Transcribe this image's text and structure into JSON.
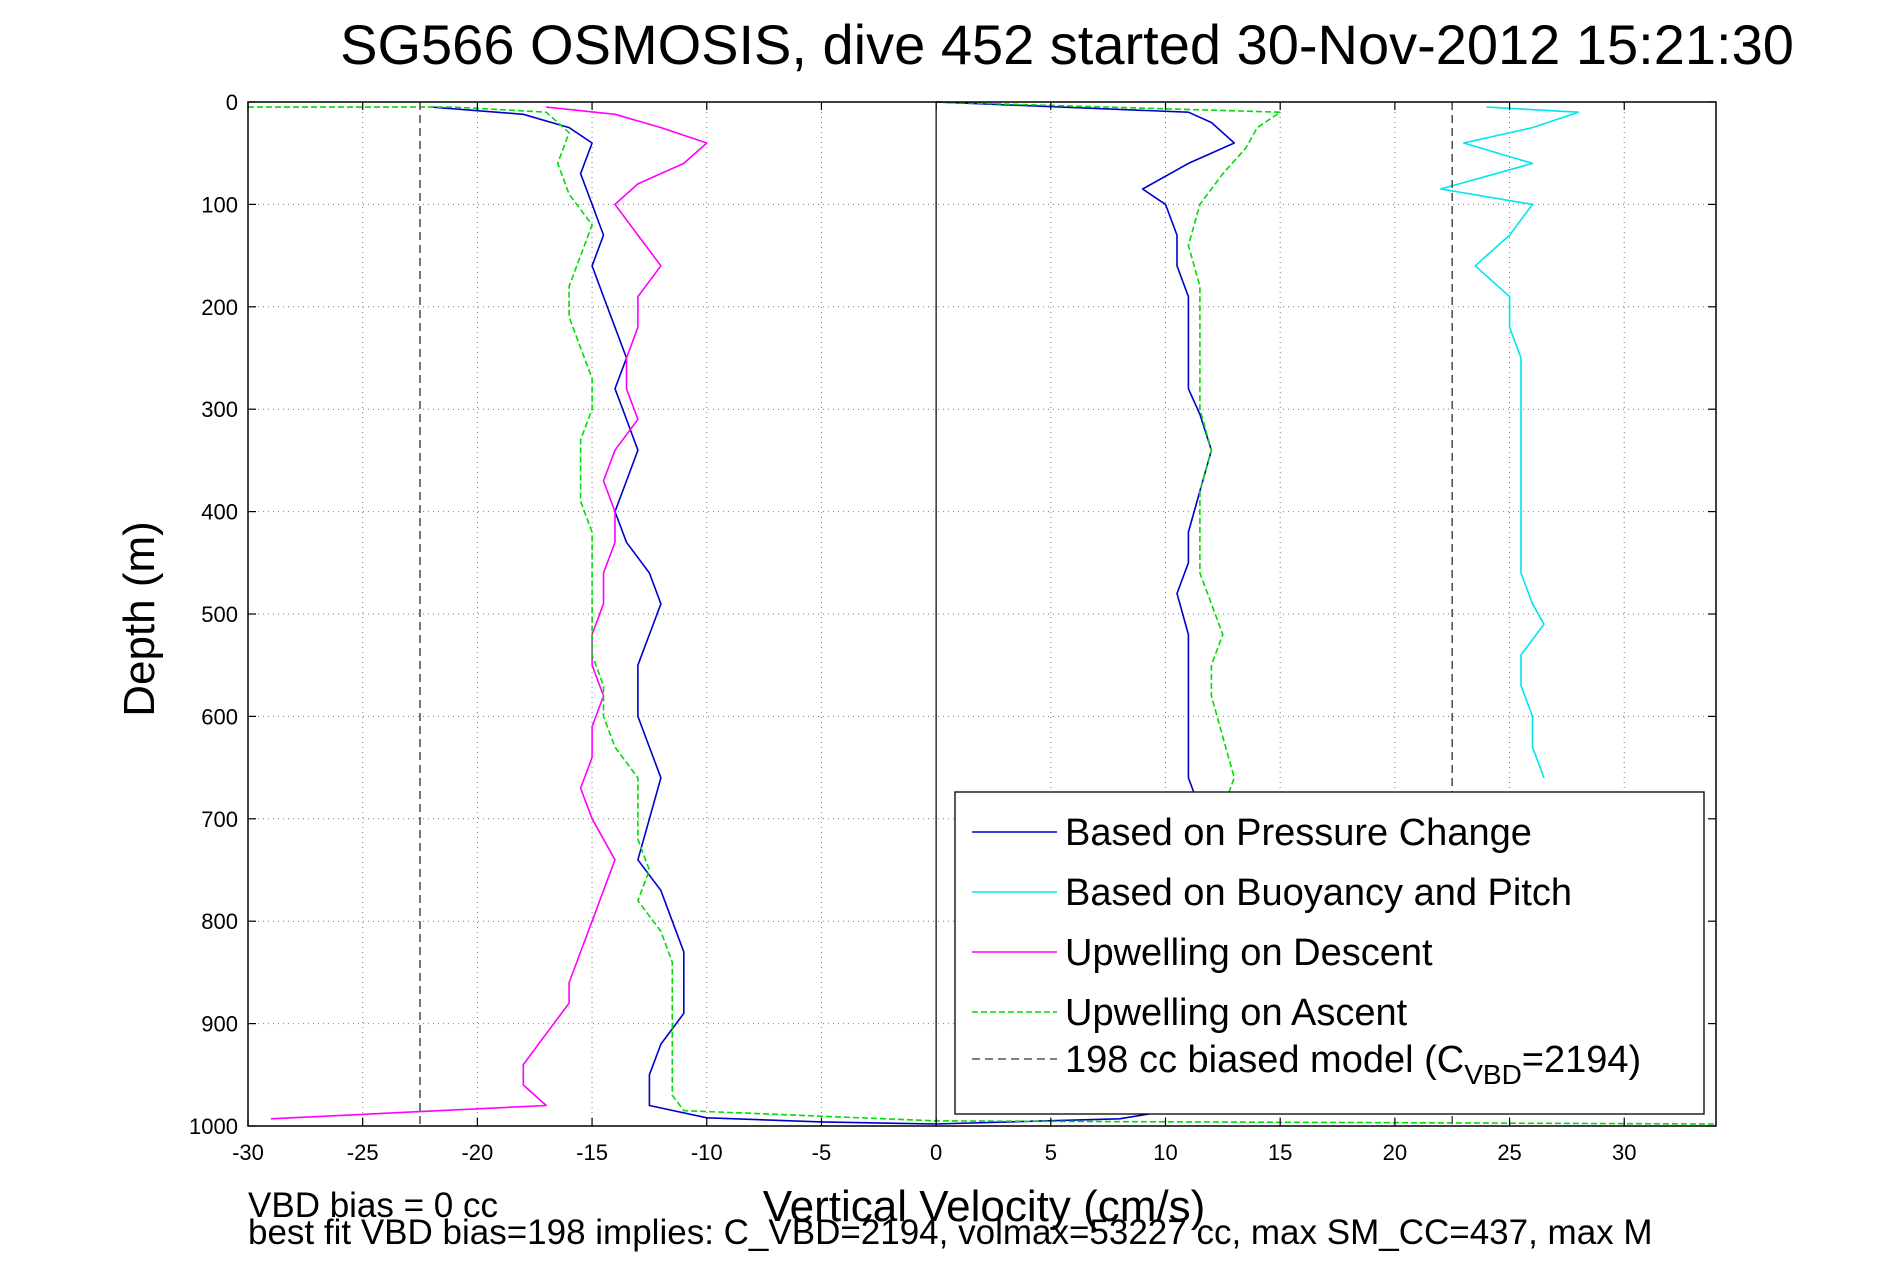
{
  "chart_data": {
    "type": "line",
    "title": "SG566 OSMOSIS, dive 452 started 30-Nov-2012 15:21:30",
    "xlabel": "Vertical Velocity (cm/s)",
    "ylabel": "Depth (m)",
    "xlim": [
      -30,
      34
    ],
    "ylim": [
      0,
      1000
    ],
    "y_reversed": true,
    "grid": true,
    "x_ticks": [
      "-30",
      "-25",
      "-20",
      "-15",
      "-10",
      "-5",
      "0",
      "5",
      "10",
      "15",
      "20",
      "25",
      "30"
    ],
    "y_ticks": [
      "0",
      "100",
      "200",
      "300",
      "400",
      "500",
      "600",
      "700",
      "800",
      "900",
      "1000"
    ],
    "legend_position": "bottom-right",
    "series": [
      {
        "name": "Based on Pressure Change",
        "color": "#0000cc",
        "style": "solid",
        "profiles": [
          {
            "part": "descent",
            "points": [
              [
                -22,
                5
              ],
              [
                -18,
                12
              ],
              [
                -16,
                25
              ],
              [
                -15,
                40
              ],
              [
                -15.5,
                70
              ],
              [
                -15,
                100
              ],
              [
                -14.5,
                130
              ],
              [
                -15,
                160
              ],
              [
                -14.5,
                190
              ],
              [
                -14,
                220
              ],
              [
                -13.5,
                250
              ],
              [
                -14,
                280
              ],
              [
                -13.5,
                310
              ],
              [
                -13,
                340
              ],
              [
                -13.5,
                370
              ],
              [
                -14,
                400
              ],
              [
                -13.5,
                430
              ],
              [
                -12.5,
                460
              ],
              [
                -12,
                490
              ],
              [
                -12.5,
                520
              ],
              [
                -13,
                550
              ],
              [
                -13,
                580
              ],
              [
                -13,
                600
              ],
              [
                -12.5,
                630
              ],
              [
                -12,
                660
              ],
              [
                -12.5,
                700
              ],
              [
                -13,
                740
              ],
              [
                -12,
                770
              ],
              [
                -11.5,
                800
              ],
              [
                -11,
                830
              ],
              [
                -11,
                860
              ],
              [
                -11,
                890
              ],
              [
                -12,
                920
              ],
              [
                -12.5,
                950
              ],
              [
                -12.5,
                980
              ],
              [
                -10,
                992
              ],
              [
                -5,
                996
              ],
              [
                0,
                998
              ]
            ]
          },
          {
            "part": "ascent",
            "points": [
              [
                0,
                998
              ],
              [
                8,
                993
              ],
              [
                11.5,
                980
              ],
              [
                11.5,
                950
              ],
              [
                11.5,
                900
              ],
              [
                11,
                850
              ],
              [
                11,
                800
              ],
              [
                11.5,
                760
              ],
              [
                11,
                720
              ],
              [
                11.5,
                690
              ],
              [
                11,
                660
              ],
              [
                11,
                620
              ],
              [
                11,
                580
              ],
              [
                11,
                550
              ],
              [
                11,
                520
              ],
              [
                10.5,
                480
              ],
              [
                11,
                450
              ],
              [
                11,
                420
              ],
              [
                11.5,
                380
              ],
              [
                12,
                340
              ],
              [
                11.5,
                305
              ],
              [
                11,
                280
              ],
              [
                11,
                250
              ],
              [
                11,
                220
              ],
              [
                11,
                190
              ],
              [
                10.5,
                160
              ],
              [
                10.5,
                130
              ],
              [
                10,
                100
              ],
              [
                9,
                85
              ],
              [
                11,
                60
              ],
              [
                13,
                40
              ],
              [
                12,
                20
              ],
              [
                11,
                10
              ],
              [
                0,
                0
              ]
            ]
          }
        ]
      },
      {
        "name": "Based on Buoyancy and Pitch",
        "color": "#00e5ee",
        "style": "solid",
        "profiles": [
          {
            "part": "descent",
            "points": [
              [
                24,
                5
              ],
              [
                28,
                10
              ],
              [
                26,
                25
              ],
              [
                23,
                40
              ],
              [
                26,
                60
              ],
              [
                22,
                85
              ],
              [
                26,
                100
              ],
              [
                25,
                130
              ],
              [
                23.5,
                160
              ],
              [
                25,
                190
              ],
              [
                25,
                220
              ],
              [
                25.5,
                250
              ],
              [
                25.5,
                280
              ],
              [
                25.5,
                310
              ],
              [
                25.5,
                340
              ],
              [
                25.5,
                370
              ],
              [
                25.5,
                400
              ],
              [
                25.5,
                430
              ],
              [
                25.5,
                460
              ],
              [
                26,
                490
              ],
              [
                26.5,
                510
              ],
              [
                25.5,
                540
              ],
              [
                25.5,
                570
              ],
              [
                26,
                600
              ],
              [
                26,
                630
              ],
              [
                26.5,
                660
              ]
            ]
          }
        ]
      },
      {
        "name": "Upwelling on Descent",
        "color": "#ff00ff",
        "style": "solid",
        "profiles": [
          {
            "part": "descent",
            "points": [
              [
                -17,
                5
              ],
              [
                -14,
                12
              ],
              [
                -12,
                25
              ],
              [
                -10,
                40
              ],
              [
                -11,
                60
              ],
              [
                -13,
                80
              ],
              [
                -14,
                100
              ],
              [
                -13,
                130
              ],
              [
                -12,
                160
              ],
              [
                -13,
                190
              ],
              [
                -13,
                220
              ],
              [
                -13.5,
                250
              ],
              [
                -13.5,
                280
              ],
              [
                -13,
                310
              ],
              [
                -14,
                340
              ],
              [
                -14.5,
                370
              ],
              [
                -14,
                400
              ],
              [
                -14,
                430
              ],
              [
                -14.5,
                460
              ],
              [
                -14.5,
                490
              ],
              [
                -15,
                520
              ],
              [
                -15,
                550
              ],
              [
                -14.5,
                580
              ],
              [
                -15,
                610
              ],
              [
                -15,
                640
              ],
              [
                -15.5,
                670
              ],
              [
                -15,
                700
              ],
              [
                -14,
                740
              ],
              [
                -14.5,
                770
              ],
              [
                -15,
                800
              ],
              [
                -15.5,
                830
              ],
              [
                -16,
                860
              ],
              [
                -16,
                880
              ],
              [
                -17,
                910
              ],
              [
                -18,
                940
              ],
              [
                -18,
                960
              ],
              [
                -17,
                980
              ],
              [
                -29,
                993
              ]
            ]
          }
        ]
      },
      {
        "name": "Upwelling on Ascent",
        "color": "#00dd00",
        "style": "dashed",
        "profiles": [
          {
            "part": "descent",
            "points": [
              [
                -30,
                5
              ],
              [
                -21,
                5
              ],
              [
                -17,
                10
              ],
              [
                -16,
                30
              ],
              [
                -16.5,
                60
              ],
              [
                -16,
                90
              ],
              [
                -15,
                120
              ],
              [
                -15.5,
                150
              ],
              [
                -16,
                180
              ],
              [
                -16,
                210
              ],
              [
                -15.5,
                240
              ],
              [
                -15,
                270
              ],
              [
                -15,
                300
              ],
              [
                -15.5,
                330
              ],
              [
                -15.5,
                360
              ],
              [
                -15.5,
                390
              ],
              [
                -15,
                420
              ],
              [
                -15,
                450
              ],
              [
                -15,
                480
              ],
              [
                -15,
                510
              ],
              [
                -15,
                540
              ],
              [
                -14.5,
                570
              ],
              [
                -14.5,
                600
              ],
              [
                -14,
                630
              ],
              [
                -13,
                660
              ],
              [
                -13,
                690
              ],
              [
                -13,
                720
              ],
              [
                -12.5,
                750
              ],
              [
                -13,
                780
              ],
              [
                -12,
                810
              ],
              [
                -11.5,
                840
              ],
              [
                -11.5,
                870
              ],
              [
                -11.5,
                900
              ],
              [
                -11.5,
                940
              ],
              [
                -11.5,
                970
              ],
              [
                -11,
                985
              ],
              [
                0,
                995
              ],
              [
                40,
                998
              ]
            ]
          },
          {
            "part": "ascent",
            "points": [
              [
                12,
                950
              ],
              [
                12,
                900
              ],
              [
                12,
                850
              ],
              [
                12.5,
                800
              ],
              [
                12.5,
                760
              ],
              [
                12,
                720
              ],
              [
                12.5,
                690
              ],
              [
                13,
                660
              ],
              [
                12.5,
                620
              ],
              [
                12,
                580
              ],
              [
                12,
                550
              ],
              [
                12.5,
                520
              ],
              [
                12,
                490
              ],
              [
                11.5,
                460
              ],
              [
                11.5,
                420
              ],
              [
                11.5,
                380
              ],
              [
                12,
                340
              ],
              [
                11.5,
                300
              ],
              [
                11.5,
                260
              ],
              [
                11.5,
                220
              ],
              [
                11.5,
                180
              ],
              [
                11,
                140
              ],
              [
                11.5,
                100
              ],
              [
                12.5,
                70
              ],
              [
                13.5,
                45
              ],
              [
                14,
                25
              ],
              [
                15,
                10
              ],
              [
                0,
                0
              ]
            ]
          }
        ]
      },
      {
        "name": "198 cc biased model (C",
        "name_sub": "VBD",
        "name_after": "=2194)",
        "color": "#555555",
        "style": "dashed",
        "profiles": [
          {
            "part": "descent",
            "points": [
              [
                -22.5,
                0
              ],
              [
                -22.5,
                1000
              ]
            ]
          },
          {
            "part": "ascent",
            "points": [
              [
                22.5,
                0
              ],
              [
                22.5,
                1000
              ]
            ]
          }
        ]
      }
    ]
  },
  "footer": {
    "line1": "VBD bias = 0 cc",
    "line2": "best fit VBD bias=198 implies: C_VBD=2194, volmax=53227 cc, max SM_CC=437, max M"
  }
}
